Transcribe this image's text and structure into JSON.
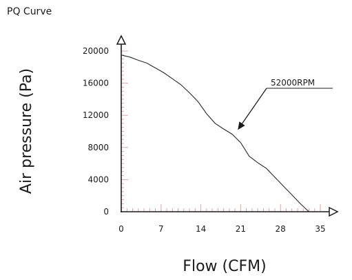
{
  "colors": {
    "axis": "#1a1a1a",
    "tick_minor": "#e8a0a0",
    "curve": "#2a2a2a",
    "text": "#1a1a1a"
  },
  "chart_data": {
    "type": "line",
    "title": "PQ Curve",
    "xlabel": "Flow (CFM)",
    "ylabel": "Air pressure (Pa)",
    "xlim": [
      0,
      35
    ],
    "ylim": [
      0,
      20000
    ],
    "xticks": [
      0,
      7,
      14,
      21,
      28,
      35
    ],
    "yticks": [
      0,
      4000,
      8000,
      12000,
      16000,
      20000
    ],
    "grid": false,
    "annotations": [
      {
        "text": "52000RPM",
        "points_to": {
          "x": 20.5,
          "y": 10200
        }
      }
    ],
    "series": [
      {
        "name": "52000RPM",
        "x": [
          0,
          1.5,
          3,
          4.5,
          6,
          7.5,
          9,
          10.5,
          12,
          13.5,
          15,
          16.5,
          18,
          19.5,
          21,
          22.5,
          24,
          25.5,
          27,
          28.5,
          30,
          31.5,
          33
        ],
        "y": [
          19500,
          19250,
          18850,
          18500,
          17900,
          17300,
          16550,
          15800,
          14800,
          13700,
          12200,
          11000,
          10300,
          9650,
          8600,
          6900,
          6100,
          5400,
          4300,
          3200,
          2100,
          1000,
          0
        ]
      }
    ]
  }
}
